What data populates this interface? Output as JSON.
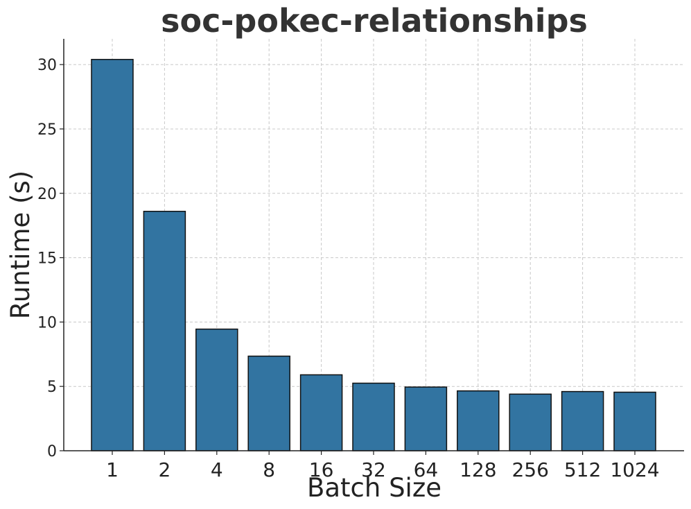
{
  "chart_data": {
    "type": "bar",
    "title": "soc-pokec-relationships",
    "xlabel": "Batch Size",
    "ylabel": "Runtime (s)",
    "categories": [
      "1",
      "2",
      "4",
      "8",
      "16",
      "32",
      "64",
      "128",
      "256",
      "512",
      "1024"
    ],
    "values": [
      30.4,
      18.6,
      9.45,
      7.35,
      5.9,
      5.25,
      4.95,
      4.65,
      4.4,
      4.6,
      4.55
    ],
    "ylim": [
      0,
      32
    ],
    "yticks": [
      0,
      5,
      10,
      15,
      20,
      25,
      30
    ],
    "grid": true,
    "bar_color": "#3274a1"
  }
}
